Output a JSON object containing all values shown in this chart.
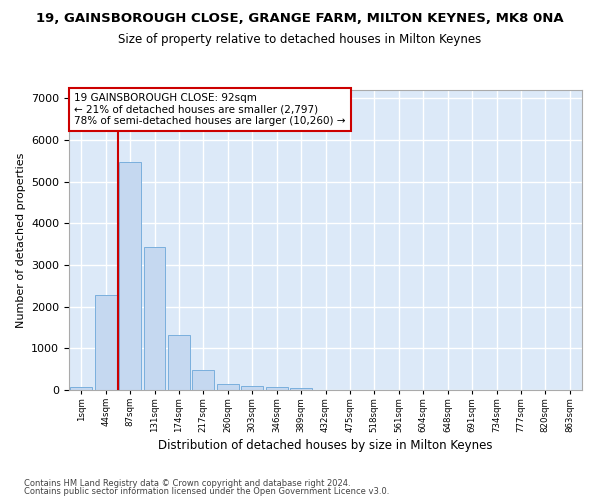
{
  "title": "19, GAINSBOROUGH CLOSE, GRANGE FARM, MILTON KEYNES, MK8 0NA",
  "subtitle": "Size of property relative to detached houses in Milton Keynes",
  "xlabel": "Distribution of detached houses by size in Milton Keynes",
  "ylabel": "Number of detached properties",
  "bar_color": "#c5d8f0",
  "bar_edge_color": "#7aafdd",
  "background_color": "#dce9f8",
  "grid_color": "#ffffff",
  "annotation_line1": "19 GAINSBOROUGH CLOSE: 92sqm",
  "annotation_line2": "← 21% of detached houses are smaller (2,797)",
  "annotation_line3": "78% of semi-detached houses are larger (10,260) →",
  "annotation_box_color": "#ffffff",
  "annotation_border_color": "#cc0000",
  "vline_color": "#cc0000",
  "vline_bar_index": 1.5,
  "footer_line1": "Contains HM Land Registry data © Crown copyright and database right 2024.",
  "footer_line2": "Contains public sector information licensed under the Open Government Licence v3.0.",
  "bin_labels": [
    "1sqm",
    "44sqm",
    "87sqm",
    "131sqm",
    "174sqm",
    "217sqm",
    "260sqm",
    "303sqm",
    "346sqm",
    "389sqm",
    "432sqm",
    "475sqm",
    "518sqm",
    "561sqm",
    "604sqm",
    "648sqm",
    "691sqm",
    "734sqm",
    "777sqm",
    "820sqm",
    "863sqm"
  ],
  "values": [
    80,
    2270,
    5470,
    3440,
    1310,
    470,
    155,
    90,
    70,
    45,
    10,
    5,
    3,
    2,
    1,
    1,
    0,
    0,
    0,
    0,
    0
  ],
  "ylim": [
    0,
    7200
  ],
  "yticks": [
    0,
    1000,
    2000,
    3000,
    4000,
    5000,
    6000,
    7000
  ]
}
